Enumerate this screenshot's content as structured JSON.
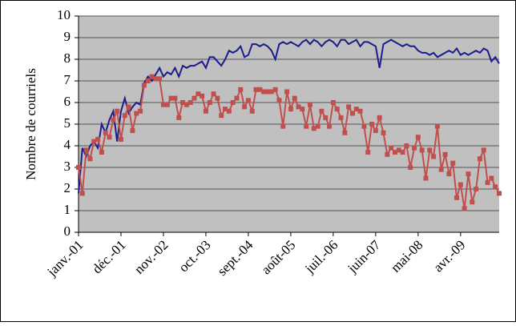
{
  "chart_data": {
    "type": "line",
    "ylabel": "Nombre de courriels",
    "categories": [
      "janv.-01",
      null,
      null,
      null,
      null,
      null,
      null,
      null,
      null,
      null,
      null,
      "déc.-01",
      null,
      null,
      null,
      null,
      null,
      null,
      null,
      null,
      null,
      null,
      "nov.-02",
      null,
      null,
      null,
      null,
      null,
      null,
      null,
      null,
      null,
      null,
      "oct.-03",
      null,
      null,
      null,
      null,
      null,
      null,
      null,
      null,
      null,
      null,
      "sept.-04",
      null,
      null,
      null,
      null,
      null,
      null,
      null,
      null,
      null,
      null,
      "août-05",
      null,
      null,
      null,
      null,
      null,
      null,
      null,
      null,
      null,
      null,
      "juil.-06",
      null,
      null,
      null,
      null,
      null,
      null,
      null,
      null,
      null,
      null,
      "juin-07",
      null,
      null,
      null,
      null,
      null,
      null,
      null,
      null,
      null,
      null,
      "mai-08",
      null,
      null,
      null,
      null,
      null,
      null,
      null,
      null,
      null,
      null,
      "avr.-09",
      null,
      null,
      null,
      null,
      null,
      null,
      null,
      null,
      null,
      null
    ],
    "series": [
      {
        "color": "#1c1c8a",
        "marker": "none",
        "values": [
          1.8,
          3.9,
          3.5,
          4.0,
          4.2,
          3.9,
          5.0,
          4.6,
          5.2,
          5.6,
          4.2,
          5.6,
          6.2,
          5.5,
          5.8,
          6.0,
          5.9,
          6.9,
          7.2,
          7.0,
          7.3,
          7.6,
          7.2,
          7.4,
          7.3,
          7.6,
          7.2,
          7.7,
          7.6,
          7.7,
          7.7,
          7.8,
          7.9,
          7.6,
          8.1,
          8.1,
          7.9,
          7.7,
          8.0,
          8.4,
          8.3,
          8.4,
          8.6,
          8.1,
          8.2,
          8.7,
          8.7,
          8.6,
          8.7,
          8.6,
          8.4,
          8.0,
          8.7,
          8.8,
          8.7,
          8.8,
          8.7,
          8.6,
          8.8,
          8.9,
          8.7,
          8.9,
          8.8,
          8.6,
          8.8,
          8.9,
          8.8,
          8.6,
          8.9,
          8.9,
          8.7,
          8.8,
          8.9,
          8.6,
          8.8,
          8.8,
          8.7,
          8.6,
          7.6,
          8.7,
          8.8,
          8.9,
          8.8,
          8.7,
          8.6,
          8.7,
          8.6,
          8.6,
          8.4,
          8.3,
          8.3,
          8.2,
          8.3,
          8.1,
          8.2,
          8.3,
          8.4,
          8.3,
          8.5,
          8.2,
          8.3,
          8.2,
          8.3,
          8.4,
          8.3,
          8.5,
          8.4,
          7.9,
          8.1,
          7.8
        ]
      },
      {
        "color": "#c0504d",
        "marker": "square",
        "values": [
          3.0,
          1.8,
          3.8,
          3.4,
          4.2,
          4.3,
          3.7,
          4.6,
          4.4,
          5.2,
          5.6,
          4.3,
          5.4,
          5.8,
          4.7,
          5.5,
          5.6,
          6.8,
          7.0,
          7.2,
          7.1,
          7.1,
          5.9,
          5.9,
          6.2,
          6.2,
          5.3,
          6.0,
          5.9,
          6.0,
          6.2,
          6.4,
          6.3,
          5.6,
          6.0,
          6.4,
          6.2,
          5.4,
          5.7,
          5.6,
          6.0,
          6.2,
          6.6,
          5.8,
          6.1,
          5.6,
          6.6,
          6.6,
          6.5,
          6.5,
          6.5,
          6.6,
          6.1,
          4.9,
          6.5,
          5.7,
          6.2,
          5.8,
          5.7,
          4.9,
          5.9,
          4.8,
          4.9,
          5.6,
          5.3,
          4.9,
          6.0,
          5.7,
          5.3,
          4.6,
          5.8,
          5.5,
          5.7,
          5.6,
          4.9,
          3.7,
          5.0,
          4.7,
          5.3,
          4.6,
          3.6,
          3.9,
          3.7,
          3.8,
          3.7,
          4.0,
          3.0,
          3.9,
          4.4,
          3.8,
          2.5,
          3.8,
          3.5,
          4.9,
          2.9,
          3.6,
          2.7,
          3.2,
          1.6,
          2.2,
          1.1,
          2.7,
          1.4,
          2.0,
          3.4,
          3.8,
          2.3,
          2.5,
          2.1,
          1.8
        ]
      }
    ],
    "ylim": [
      0,
      10
    ],
    "yticks": [
      0,
      1,
      2,
      3,
      4,
      5,
      6,
      7,
      8,
      9,
      10
    ],
    "grid": true
  }
}
